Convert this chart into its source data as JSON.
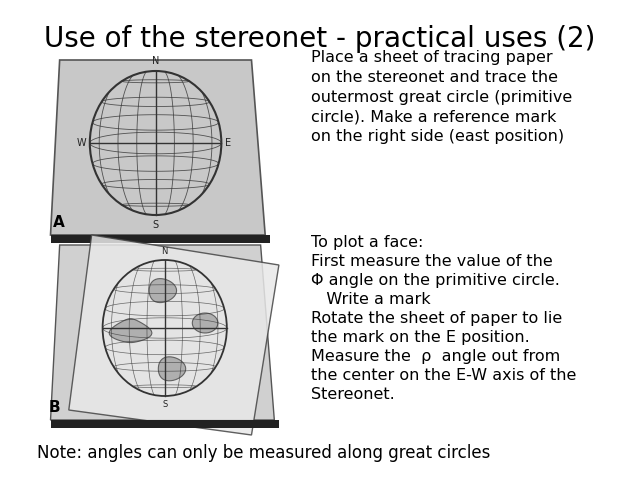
{
  "title": "Use of the stereonet - practical uses (2)",
  "title_fontsize": 20,
  "background_color": "#ffffff",
  "text_color": "#000000",
  "subtitle": "To plot a face:",
  "paragraph1": "Place a sheet of tracing paper\non the stereonet and trace the\noutermost great circle (primitive\ncircle). Make a reference mark\non the right side (east position)",
  "paragraph2_lines": [
    "To plot a face:",
    "First measure the value of the",
    "Φ angle on the primitive circle.",
    "   Write a mark",
    "Rotate the sheet of paper to lie",
    "the mark on the E position.",
    "Measure the  ρ  angle out from",
    "the center on the E-W axis of the",
    "Stereonet."
  ],
  "footnote": "Note: angles can only be measured along great circles",
  "footnote_fontsize": 12,
  "label_A": "A",
  "label_B": "B"
}
